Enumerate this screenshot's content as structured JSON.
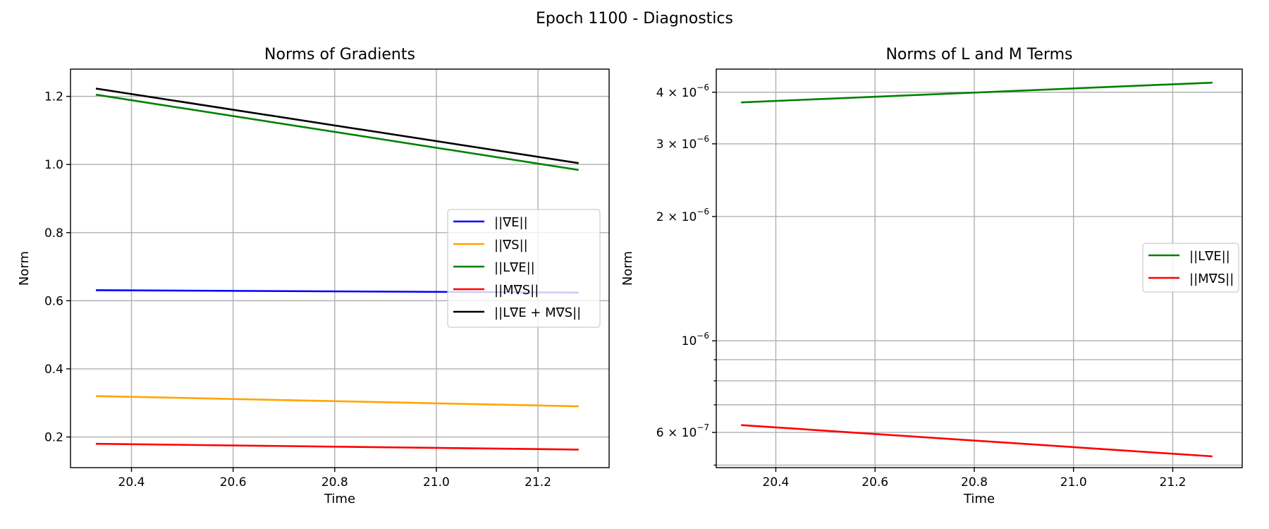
{
  "figure": {
    "suptitle": "Epoch 1100 - Diagnostics"
  },
  "chart_data": [
    {
      "type": "line",
      "title": "Norms of Gradients",
      "xlabel": "Time",
      "ylabel": "Norm",
      "xlim": [
        20.28,
        21.34
      ],
      "ylim": [
        0.11,
        1.28
      ],
      "xticks": [
        20.4,
        20.6,
        20.8,
        21.0,
        21.2
      ],
      "xtick_labels": [
        "20.4",
        "20.6",
        "20.8",
        "21.0",
        "21.2"
      ],
      "yticks": [
        0.2,
        0.4,
        0.6,
        0.8,
        1.0,
        1.2
      ],
      "ytick_labels": [
        "0.2",
        "0.4",
        "0.6",
        "0.8",
        "1.0",
        "1.2"
      ],
      "grid": true,
      "legend": "center-right",
      "series": [
        {
          "name": "||∇E||",
          "color": "#0000ff",
          "x": [
            20.33,
            21.28
          ],
          "y": [
            0.631,
            0.624
          ]
        },
        {
          "name": "||∇S||",
          "color": "#ffa500",
          "x": [
            20.33,
            21.28
          ],
          "y": [
            0.32,
            0.29
          ]
        },
        {
          "name": "||L∇E||",
          "color": "#008000",
          "x": [
            20.33,
            21.28
          ],
          "y": [
            1.205,
            0.984
          ]
        },
        {
          "name": "||M∇S||",
          "color": "#ff0000",
          "x": [
            20.33,
            21.28
          ],
          "y": [
            0.18,
            0.163
          ]
        },
        {
          "name": "||L∇E + M∇S||",
          "color": "#000000",
          "x": [
            20.33,
            21.28
          ],
          "y": [
            1.223,
            1.004
          ]
        }
      ]
    },
    {
      "type": "line",
      "title": "Norms of L and M Terms",
      "xlabel": "Time",
      "ylabel": "Norm",
      "yscale": "log",
      "xlim": [
        20.28,
        21.34
      ],
      "ylim": [
        4.93e-07,
        4.55e-06
      ],
      "xticks": [
        20.4,
        20.6,
        20.8,
        21.0,
        21.2
      ],
      "xtick_labels": [
        "20.4",
        "20.6",
        "20.8",
        "21.0",
        "21.2"
      ],
      "yticks": [
        6e-07,
        1e-06,
        2e-06,
        3e-06,
        4e-06
      ],
      "ytick_labels": [
        {
          "mant": "6 × 10",
          "exp": "−7"
        },
        {
          "mant": "10",
          "exp": "−6"
        },
        {
          "mant": "2 × 10",
          "exp": "−6"
        },
        {
          "mant": "3 × 10",
          "exp": "−6"
        },
        {
          "mant": "4 × 10",
          "exp": "−6"
        }
      ],
      "minor_yticks": [
        5e-07,
        7e-07,
        8e-07,
        9e-07
      ],
      "grid": true,
      "legend": "center-right",
      "series": [
        {
          "name": "||L∇E||",
          "color": "#008000",
          "x": [
            20.33,
            21.28
          ],
          "y": [
            3.78e-06,
            4.22e-06
          ]
        },
        {
          "name": "||M∇S||",
          "color": "#ff0000",
          "x": [
            20.33,
            21.28
          ],
          "y": [
            6.25e-07,
            5.25e-07
          ]
        }
      ]
    }
  ]
}
